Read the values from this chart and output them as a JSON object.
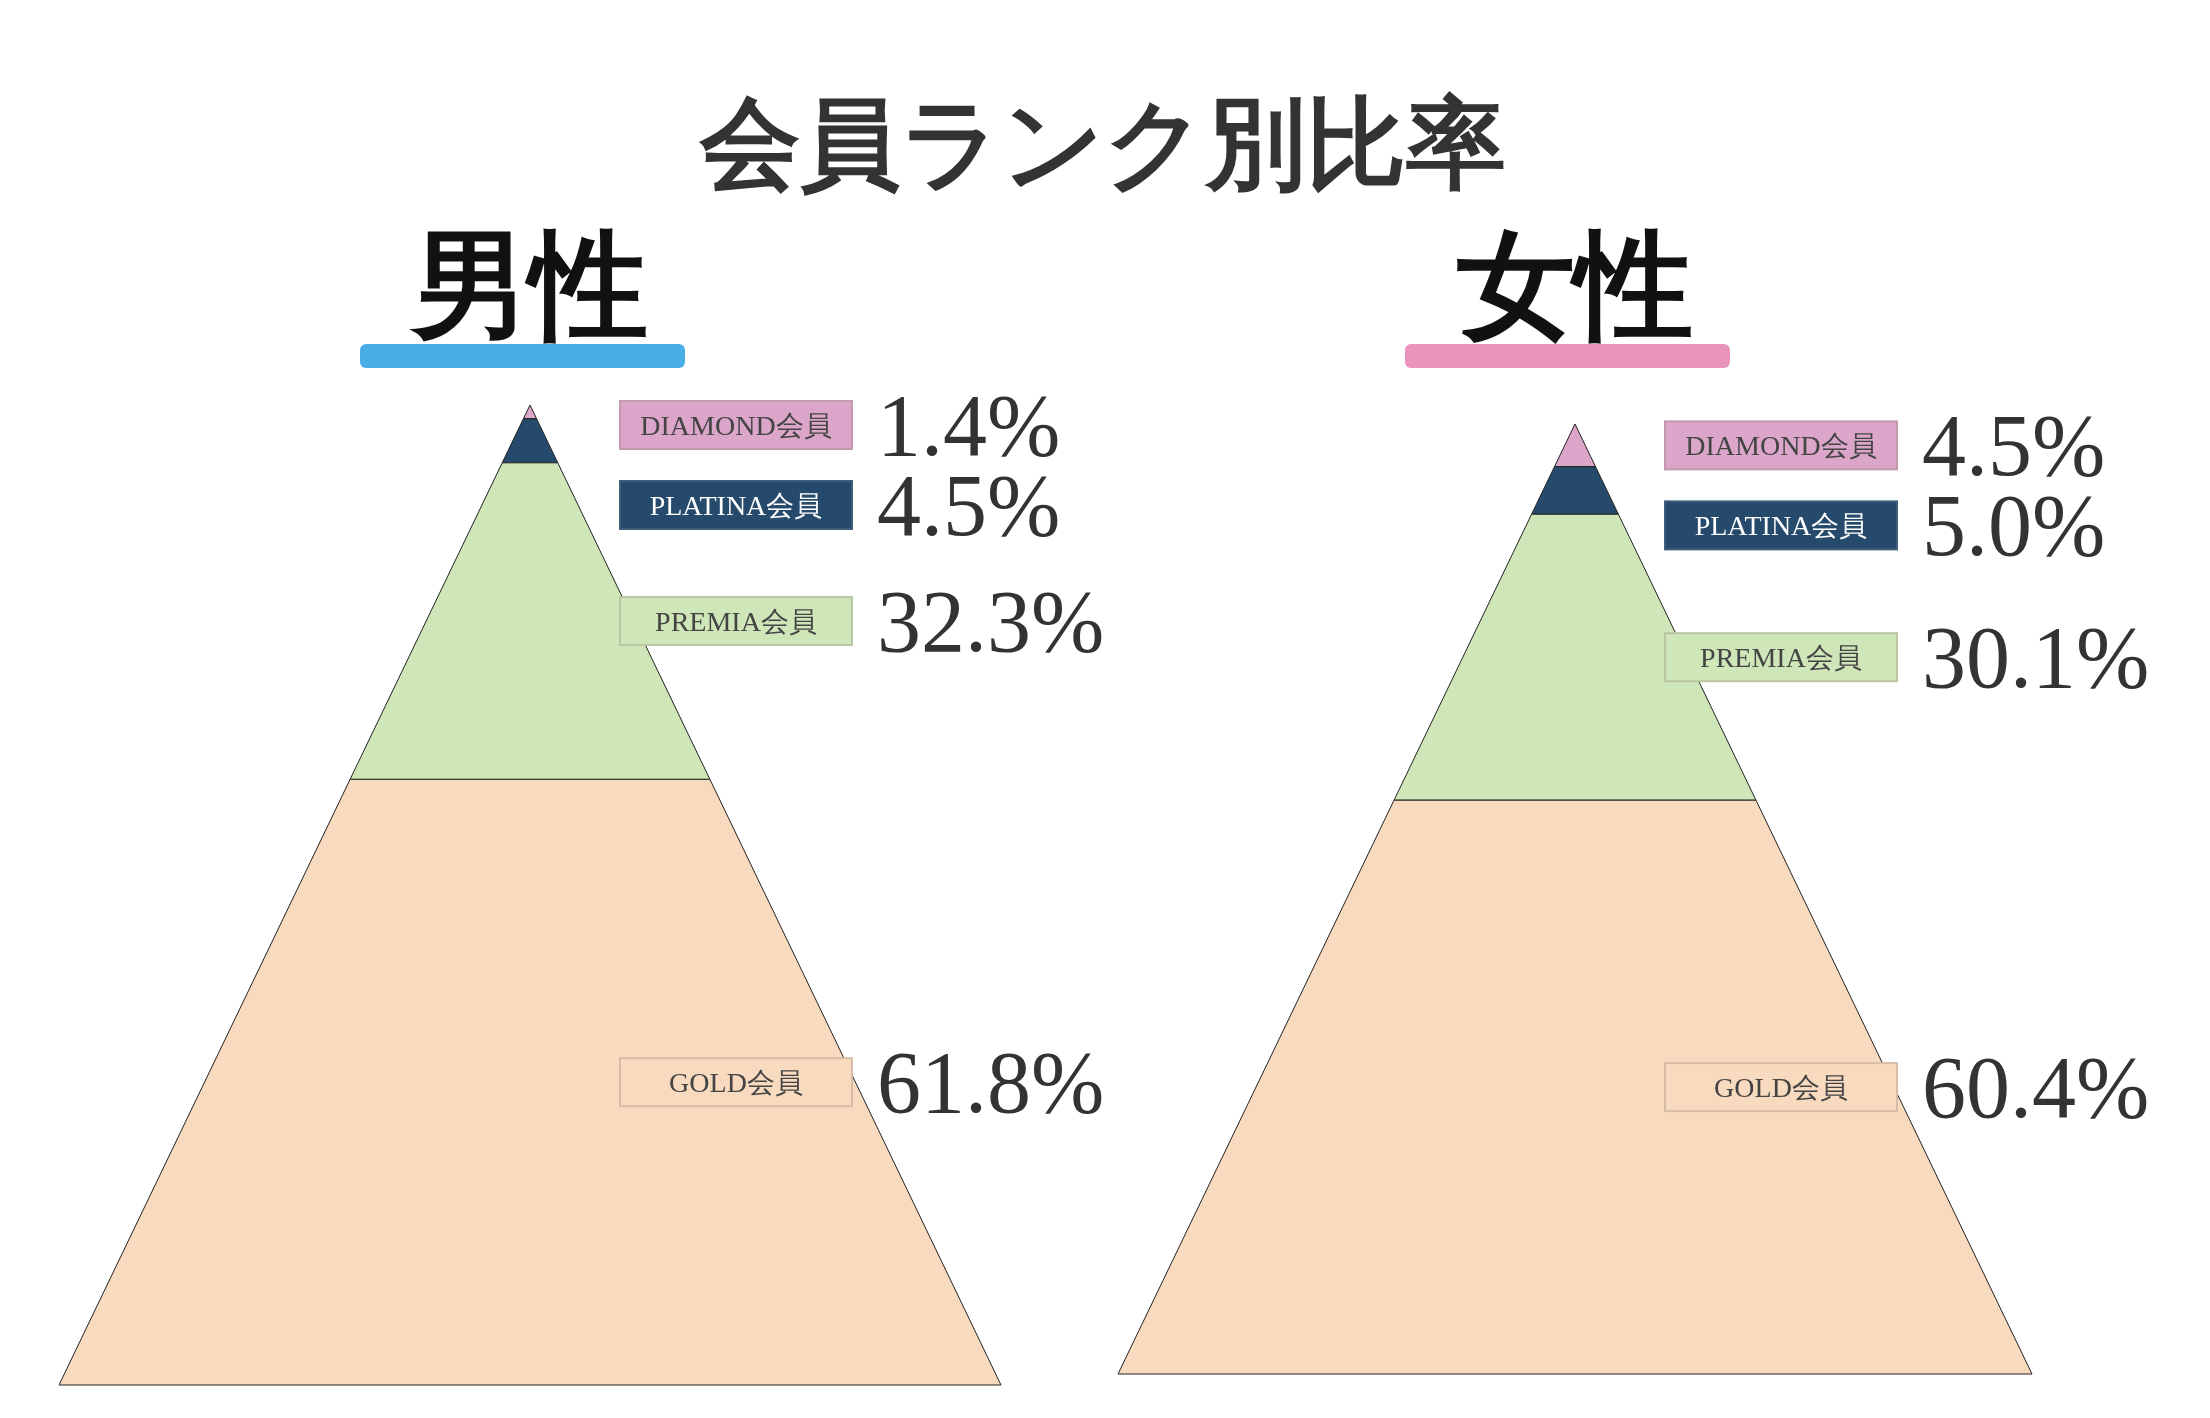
{
  "chart_data": [
    {
      "type": "other",
      "title": "会員ランク別比率",
      "subtitle": "男性",
      "categories": [
        "DIAMOND会員",
        "PLATINA会員",
        "PREMIA会員",
        "GOLD会員"
      ],
      "values": [
        1.4,
        4.5,
        32.3,
        61.8
      ],
      "value_labels": [
        "1.4%",
        "4.5%",
        "32.3%",
        "61.8%"
      ],
      "colors": [
        "#dba6c9",
        "#264a6b",
        "#cfe6b8",
        "#f8dabe"
      ]
    },
    {
      "type": "other",
      "subtitle": "女性",
      "categories": [
        "DIAMOND会員",
        "PLATINA会員",
        "PREMIA会員",
        "GOLD会員"
      ],
      "values": [
        4.5,
        5.0,
        30.1,
        60.4
      ],
      "value_labels": [
        "4.5%",
        "5.0%",
        "30.1%",
        "60.4%"
      ],
      "colors": [
        "#dba6c9",
        "#264a6b",
        "#cfe6b8",
        "#f8dabe"
      ]
    }
  ]
}
